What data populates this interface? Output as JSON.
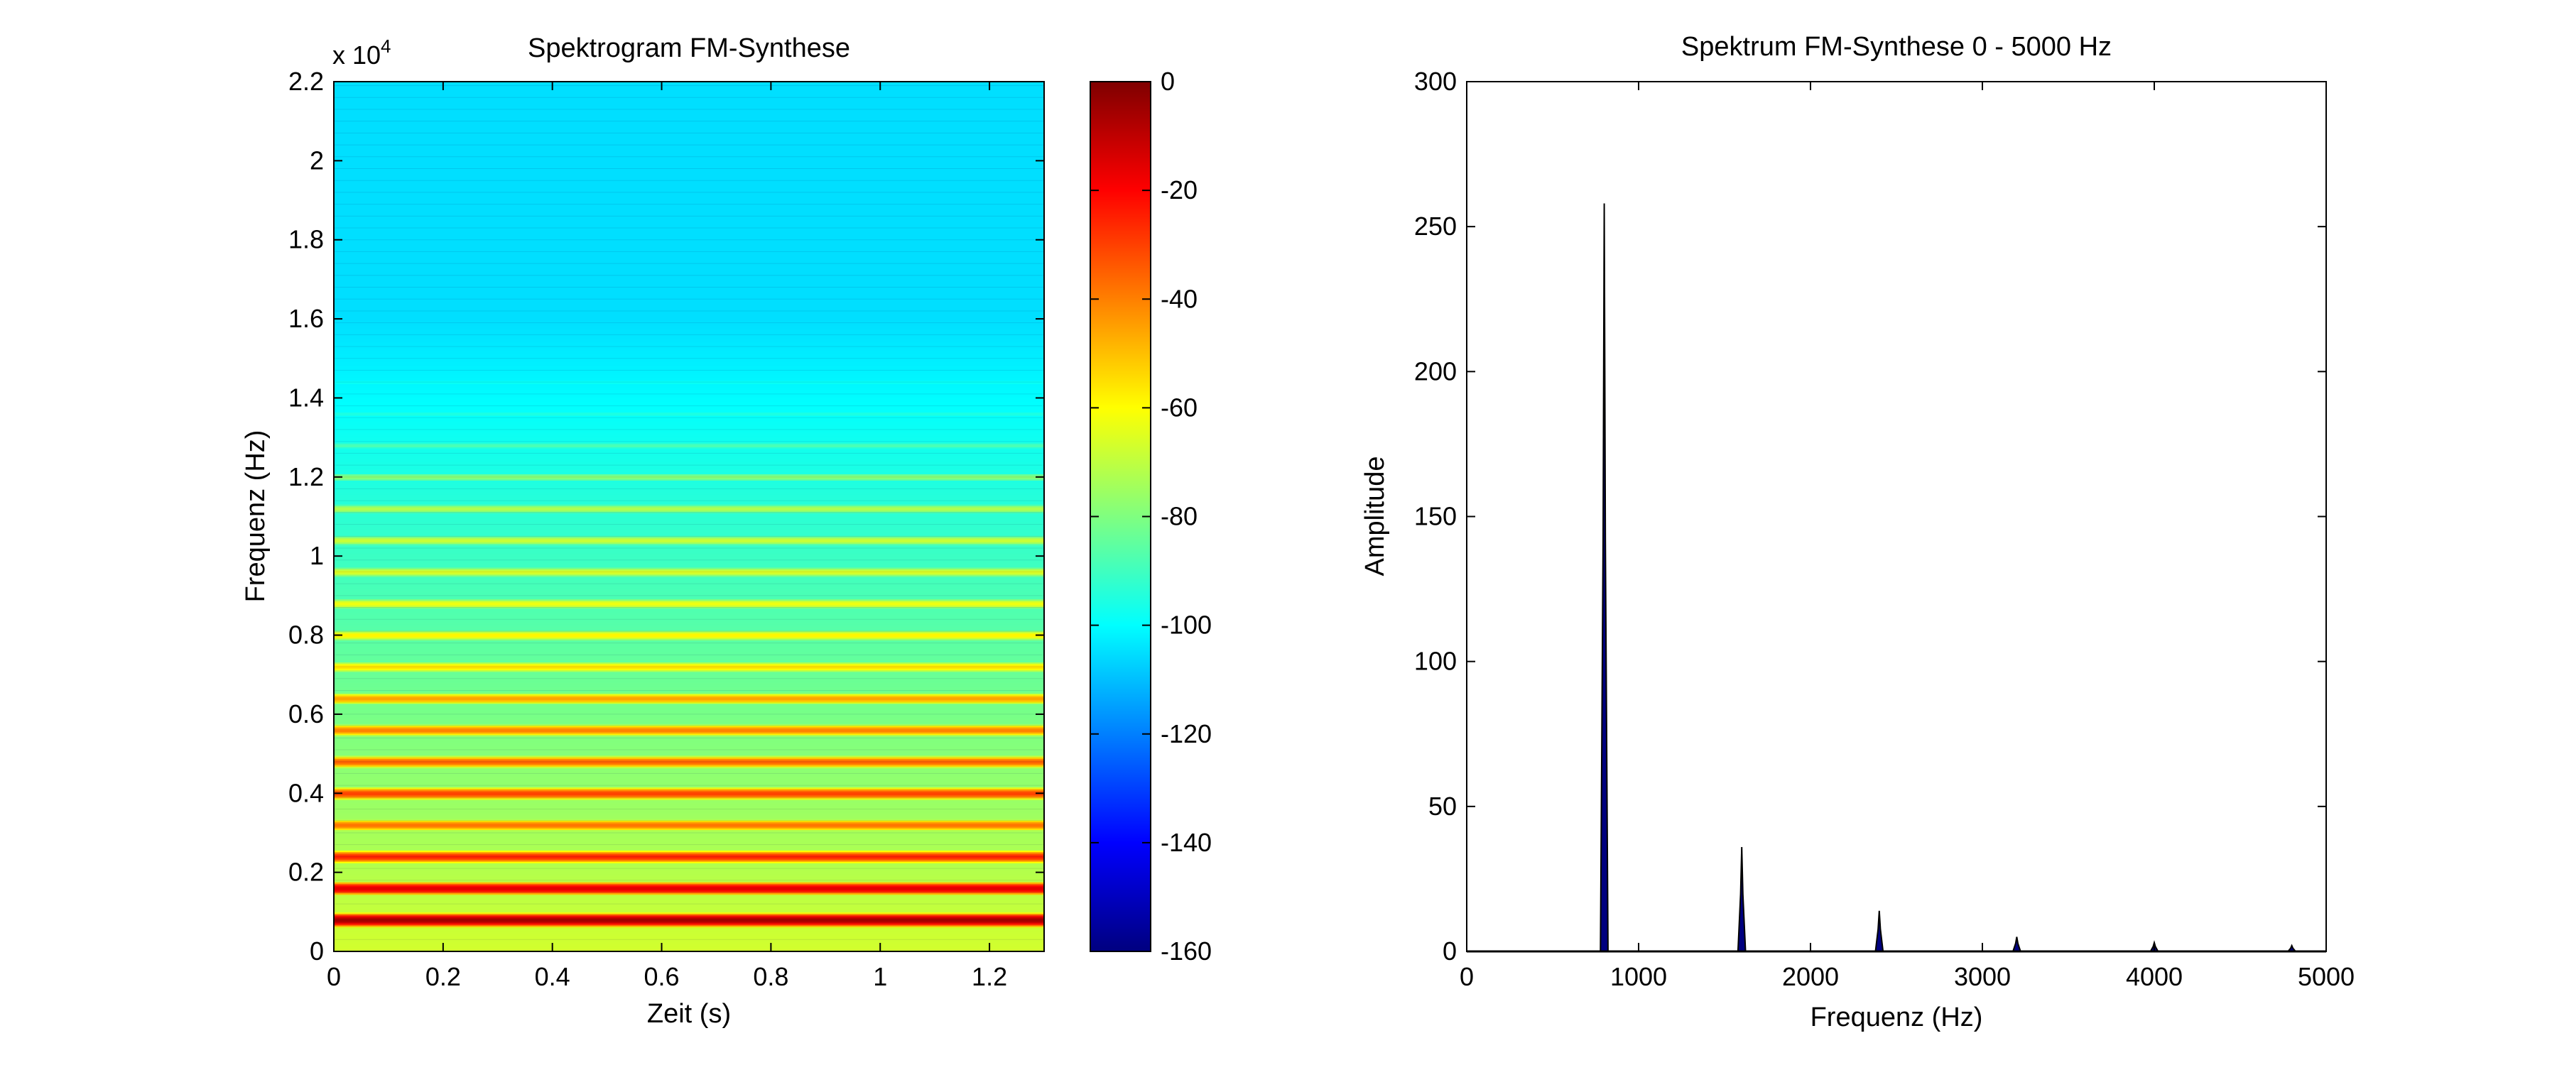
{
  "chart_data": [
    {
      "type": "heatmap",
      "title": "Spektrogram FM-Synthese",
      "xlabel": "Zeit (s)",
      "ylabel": "Frequenz (Hz)",
      "xlim": [
        0,
        1.3
      ],
      "ylim": [
        0,
        22000
      ],
      "x_ticks": [
        0,
        0.2,
        0.4,
        0.6,
        0.8,
        1.0,
        1.2
      ],
      "x_tick_labels": [
        "0",
        "0.2",
        "0.4",
        "0.6",
        "0.8",
        "1",
        "1.2"
      ],
      "y_ticks": [
        0,
        2000,
        4000,
        6000,
        8000,
        10000,
        12000,
        14000,
        16000,
        18000,
        20000,
        22000
      ],
      "y_tick_labels": [
        "0",
        "0.2",
        "0.4",
        "0.6",
        "0.8",
        "1",
        "1.2",
        "1.4",
        "1.6",
        "1.8",
        "2",
        "2.2"
      ],
      "y_exponent_label": "x 10",
      "y_exponent_power": "4",
      "colormap": "jet",
      "background_level_db": -105,
      "harmonic_lines": [
        {
          "freq_hz": 800,
          "level_db": -5
        },
        {
          "freq_hz": 1600,
          "level_db": -15
        },
        {
          "freq_hz": 2400,
          "level_db": -25
        },
        {
          "freq_hz": 3200,
          "level_db": -38
        },
        {
          "freq_hz": 4000,
          "level_db": -30
        },
        {
          "freq_hz": 4800,
          "level_db": -35
        },
        {
          "freq_hz": 5600,
          "level_db": -40
        },
        {
          "freq_hz": 6400,
          "level_db": -45
        },
        {
          "freq_hz": 7200,
          "level_db": -55
        },
        {
          "freq_hz": 8000,
          "level_db": -58
        },
        {
          "freq_hz": 8800,
          "level_db": -62
        },
        {
          "freq_hz": 9600,
          "level_db": -65
        },
        {
          "freq_hz": 10400,
          "level_db": -68
        },
        {
          "freq_hz": 11200,
          "level_db": -72
        },
        {
          "freq_hz": 12000,
          "level_db": -78
        },
        {
          "freq_hz": 12800,
          "level_db": -88
        },
        {
          "freq_hz": 13600,
          "level_db": -95
        },
        {
          "freq_hz": 14400,
          "level_db": -98
        }
      ],
      "colorbar": {
        "range": [
          -160,
          0
        ],
        "ticks": [
          0,
          -20,
          -40,
          -60,
          -80,
          -100,
          -120,
          -140,
          -160
        ],
        "tick_labels": [
          "0",
          "-20",
          "-40",
          "-60",
          "-80",
          "-100",
          "-120",
          "-140",
          "-160"
        ]
      }
    },
    {
      "type": "area",
      "title": "Spektrum FM-Synthese 0 - 5000 Hz",
      "xlabel": "Frequenz (Hz)",
      "ylabel": "Amplitude",
      "xlim": [
        0,
        5000
      ],
      "ylim": [
        0,
        300
      ],
      "x_ticks": [
        0,
        1000,
        2000,
        3000,
        4000,
        5000
      ],
      "x_tick_labels": [
        "0",
        "1000",
        "2000",
        "3000",
        "4000",
        "5000"
      ],
      "y_ticks": [
        0,
        50,
        100,
        150,
        200,
        250,
        300
      ],
      "y_tick_labels": [
        "0",
        "50",
        "100",
        "150",
        "200",
        "250",
        "300"
      ],
      "fill_color": "#00007f",
      "peak_half_width_hz": 22,
      "peaks": [
        {
          "x": 800,
          "y": 258
        },
        {
          "x": 1600,
          "y": 36
        },
        {
          "x": 2400,
          "y": 14
        },
        {
          "x": 3200,
          "y": 5
        },
        {
          "x": 4000,
          "y": 3
        },
        {
          "x": 4800,
          "y": 2
        }
      ]
    }
  ]
}
